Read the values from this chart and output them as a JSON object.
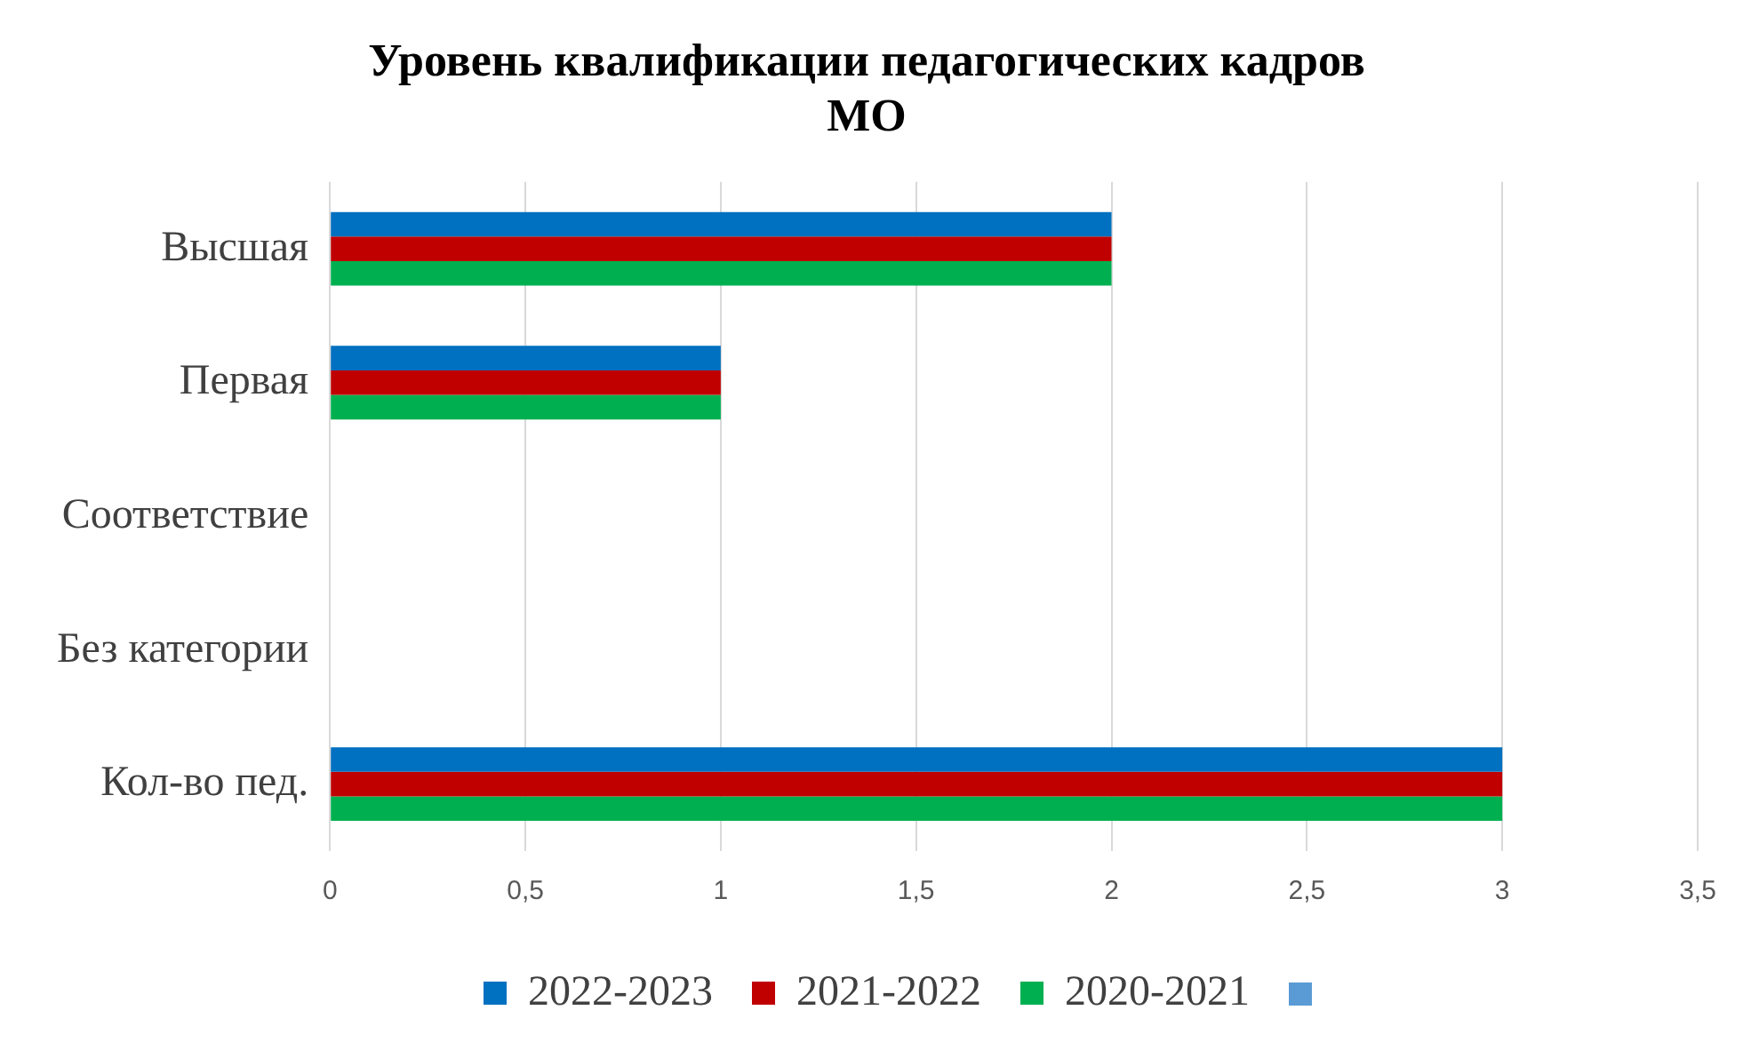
{
  "chart_data": {
    "type": "bar",
    "orientation": "horizontal",
    "title": "Уровень квалификации педагогических кадров\nМО",
    "categories": [
      "Высшая",
      "Первая",
      "Соответствие",
      "Без категории",
      "Кол-во пед."
    ],
    "series": [
      {
        "name": "2022-2023",
        "color": "#0070c0",
        "values": [
          2,
          1,
          0,
          0,
          3
        ]
      },
      {
        "name": "2021-2022",
        "color": "#c00000",
        "values": [
          2,
          1,
          0,
          0,
          3
        ]
      },
      {
        "name": "2020-2021",
        "color": "#00b050",
        "values": [
          2,
          1,
          0,
          0,
          3
        ]
      }
    ],
    "xlim": [
      0,
      3.5
    ],
    "xticks": [
      {
        "value": 0,
        "label": "0"
      },
      {
        "value": 0.5,
        "label": "0,5"
      },
      {
        "value": 1,
        "label": "1"
      },
      {
        "value": 1.5,
        "label": "1,5"
      },
      {
        "value": 2,
        "label": "2"
      },
      {
        "value": 2.5,
        "label": "2,5"
      },
      {
        "value": 3,
        "label": "3"
      },
      {
        "value": 3.5,
        "label": "3,5"
      }
    ],
    "grid": "x",
    "legend": "bottom"
  }
}
